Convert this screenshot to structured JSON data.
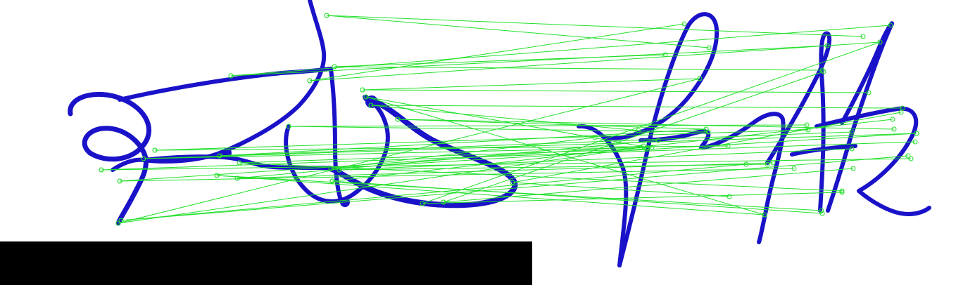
{
  "colors": {
    "background": "#ffffff",
    "signature_ink": "#1a12c8",
    "match_lines": "#22e02a",
    "keypoints": "#22e02a",
    "redaction_box": "#000000"
  }
}
